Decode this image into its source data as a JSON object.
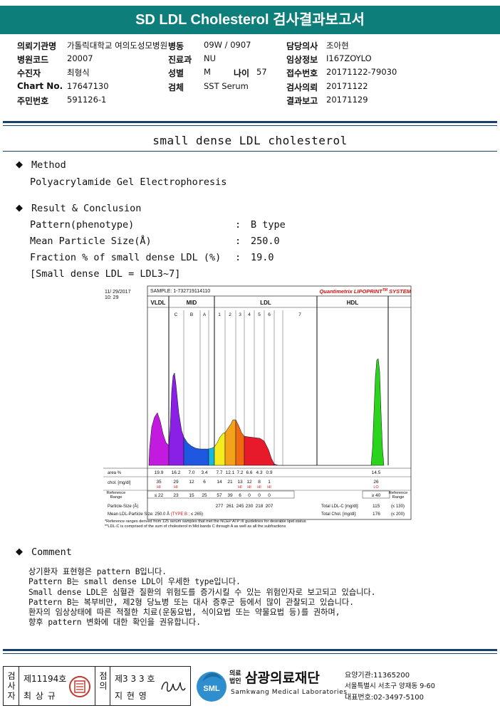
{
  "header": {
    "title": "SD LDL Cholesterol 검사결과보고서"
  },
  "patient": {
    "rows": [
      {
        "l1": "의뢰기관명",
        "v1": "가톨릭대학교 여의도성모병원",
        "l2": "병동",
        "v2": "09W / 0907",
        "l3": "담당의사",
        "v3": "조아현"
      },
      {
        "l1": "병원코드",
        "v1": "20007",
        "l2": "진료과",
        "v2": "NU",
        "l3": "임상정보",
        "v3": "I167ZOYLO"
      },
      {
        "l1": "수진자",
        "v1": "최형식",
        "l2": "성별",
        "v2": "M",
        "l2b": "나이",
        "v2b": "57",
        "l3": "접수번호",
        "v3": "20171122-79030"
      },
      {
        "l1": "Chart No.",
        "v1": "17647130",
        "l2": "검체",
        "v2": "SST Serum",
        "l3": "검사의뢰",
        "v3": "20171122"
      },
      {
        "l1": "주민번호",
        "v1": "591126-1",
        "l2": "",
        "v2": "",
        "l3": "결과보고",
        "v3": "20171129"
      }
    ]
  },
  "section": {
    "title": "small dense LDL cholesterol"
  },
  "method": {
    "heading": "Method",
    "text": "Polyacrylamide Gel Electrophoresis"
  },
  "result": {
    "heading": "Result & Conclusion",
    "lines": [
      {
        "label": "Pattern(phenotype)",
        "value": "B type"
      },
      {
        "label": "Mean Particle Size(Å)",
        "value": "250.0"
      },
      {
        "label": "Fraction % of small dense LDL (%)",
        "value": "19.0"
      }
    ],
    "note": "[Small dense LDL = LDL3~7]"
  },
  "chart": {
    "date": "11/ 29/2017",
    "time": "10: 29",
    "sample": "SAMPLE:  1-732719114110",
    "brand": "Quantimetrix LIPOPRINT",
    "brand_sup": "TM",
    "brand_tail": " SYSTEM",
    "groups": [
      "VLDL",
      "MID",
      "LDL",
      "HDL"
    ],
    "bands": [
      "C",
      "B",
      "A",
      "1",
      "2",
      "3",
      "4",
      "5",
      "6",
      "7"
    ],
    "row_area_label": "area %",
    "area": [
      "19.9",
      "16.2",
      "7.0",
      "3.4",
      "7.7",
      "12.1",
      "7.2",
      "6.6",
      "4.3",
      "0.9"
    ],
    "hdl_area": "14.5",
    "row_chol_label": "chol. [mg/dl]",
    "chol": [
      "35",
      "29",
      "12",
      "6",
      "14",
      "21",
      "13",
      "12",
      "8",
      "1"
    ],
    "chol_flags": [
      "HI",
      "HI",
      "",
      "",
      "",
      "",
      "HI",
      "HI",
      "HI",
      "HI"
    ],
    "hdl_chol": "26",
    "hdl_flag": "LO",
    "ref_label": "Reference Range",
    "ref": [
      "≤ 22",
      "23",
      "15",
      "25",
      "57",
      "39",
      "6",
      "0",
      "0",
      "0"
    ],
    "hdl_ref": "≥ 40",
    "ref_right": "Reference Range",
    "size_label": "Particle-Size (Å)",
    "sizes": [
      "277",
      "261",
      "245",
      "230",
      "218",
      "207"
    ],
    "total_ldl_label": "Total LDL-C [mg/dl]:",
    "total_ldl": "115",
    "total_ldl_ref": "(≤ 130)",
    "mean_size_label": "Mean LDL-Particle Size:",
    "mean_size": "250.0 Å",
    "mean_size_type": "(TYPE B ;",
    "mean_size_ref": "≤ 265)",
    "total_chol_label": "Total Chol. [mg/dl]:",
    "total_chol": "176",
    "total_chol_ref": "(≤ 200)",
    "foot1": "*Reference ranges derived from 125 serum samples that met the NCEP ATP III guidelines for desirable lipid status",
    "foot2": "**LDL-C is comprised of the sum of cholesterol in Mid bands C through A as well as all the subfractions"
  },
  "chart_data": {
    "type": "area",
    "title": "",
    "categories": [
      "VLDL",
      "C",
      "B",
      "A",
      "1",
      "2",
      "3",
      "4",
      "5",
      "6",
      "7",
      "HDL"
    ],
    "series": [
      {
        "values": [
          19.9,
          16.2,
          7.0,
          3.4,
          7.7,
          12.1,
          7.2,
          6.6,
          4.3,
          0.9,
          0,
          14.5
        ]
      }
    ]
  },
  "comment": {
    "heading": "Comment",
    "lines": [
      "상기환자 표현형은 pattern B입니다.",
      "Pattern B는 small dense LDL이 우세한 type입니다.",
      "Small dense LDL은 심혈관 질환의 위험도를 증가시킬 수 있는 위험인자로 보고되고 있습니다.",
      "Pattern B는 복부비만, 제2형 당뇨병 또는 대사 증후군 등에서 많이 관찰되고 있습니다.",
      "환자의 임상상태에 따른 적절한 치료(운동요법, 식이요법 또는 약물요법 등)를 권하며,",
      "향후 pattern 변화에 대한 확인을 권유합니다."
    ]
  },
  "footer": {
    "exam_label": "검사자",
    "exam_no": "제11194호",
    "exam_name": "최 상 규",
    "check_label": "점의",
    "check_no": "제3 3 3 호",
    "check_name": "지 현 영",
    "org_prefix": "의료법인",
    "org_name": "삼광의료재단",
    "org_en": "Samkwang Medical Laboratories",
    "logo_text": "SML",
    "code": "요양기관:11365200",
    "address": "서울특별시 서초구 양재동 9-60",
    "phone": "대표번호:02-3497-5100"
  }
}
